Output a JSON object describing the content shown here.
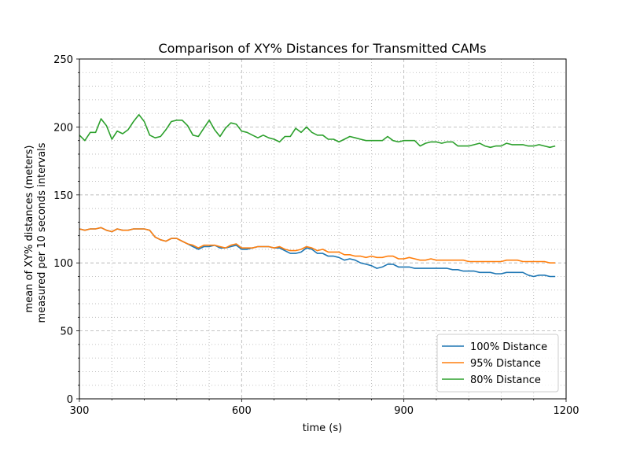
{
  "chart_data": {
    "type": "line",
    "title": "Comparison of XY% Distances for Transmitted CAMs",
    "xlabel": "time (s)",
    "ylabel": [
      "mean of XY% distances (meters)",
      "measured per 10 seconds intervals"
    ],
    "xlim": [
      300,
      1200
    ],
    "ylim": [
      0,
      250
    ],
    "x_ticks": [
      300,
      600,
      900,
      1200
    ],
    "y_ticks": [
      0,
      50,
      100,
      150,
      200,
      250
    ],
    "x_minor_step": 60,
    "y_minor_step": 10,
    "grid": {
      "major": "dashed",
      "minor": "dotted"
    },
    "legend_position": "lower-right",
    "x": [
      300,
      310,
      320,
      330,
      340,
      350,
      360,
      370,
      380,
      390,
      400,
      410,
      420,
      430,
      440,
      450,
      460,
      470,
      480,
      490,
      500,
      510,
      520,
      530,
      540,
      550,
      560,
      570,
      580,
      590,
      600,
      610,
      620,
      630,
      640,
      650,
      660,
      670,
      680,
      690,
      700,
      710,
      720,
      730,
      740,
      750,
      760,
      770,
      780,
      790,
      800,
      810,
      820,
      830,
      840,
      850,
      860,
      870,
      880,
      890,
      900,
      910,
      920,
      930,
      940,
      950,
      960,
      970,
      980,
      990,
      1000,
      1010,
      1020,
      1030,
      1040,
      1050,
      1060,
      1070,
      1080,
      1090,
      1100,
      1110,
      1120,
      1130,
      1140,
      1150,
      1160,
      1170,
      1180
    ],
    "series": [
      {
        "name": "100% Distance",
        "color": "#1f77b4",
        "values": [
          125,
          124,
          125,
          125,
          126,
          124,
          123,
          125,
          124,
          124,
          125,
          125,
          125,
          124,
          119,
          117,
          116,
          118,
          118,
          116,
          114,
          112,
          110,
          112,
          112,
          113,
          111,
          111,
          112,
          113,
          110,
          110,
          111,
          112,
          112,
          112,
          111,
          111,
          109,
          107,
          107,
          108,
          111,
          110,
          107,
          107,
          105,
          105,
          104,
          102,
          103,
          102,
          100,
          99,
          98,
          96,
          97,
          99,
          99,
          97,
          97,
          97,
          96,
          96,
          96,
          96,
          96,
          96,
          96,
          95,
          95,
          94,
          94,
          94,
          93,
          93,
          93,
          92,
          92,
          93,
          93,
          93,
          93,
          91,
          90,
          91,
          91,
          90,
          90
        ]
      },
      {
        "name": "95% Distance",
        "color": "#ff7f0e",
        "values": [
          125,
          124,
          125,
          125,
          126,
          124,
          123,
          125,
          124,
          124,
          125,
          125,
          125,
          124,
          119,
          117,
          116,
          118,
          118,
          116,
          114,
          113,
          111,
          113,
          113,
          113,
          112,
          111,
          113,
          114,
          111,
          111,
          111,
          112,
          112,
          112,
          111,
          112,
          110,
          109,
          109,
          110,
          112,
          111,
          109,
          110,
          108,
          108,
          108,
          106,
          106,
          105,
          105,
          104,
          105,
          104,
          104,
          105,
          105,
          103,
          103,
          104,
          103,
          102,
          102,
          103,
          102,
          102,
          102,
          102,
          102,
          102,
          101,
          101,
          101,
          101,
          101,
          101,
          101,
          102,
          102,
          102,
          101,
          101,
          101,
          101,
          101,
          100,
          100
        ]
      },
      {
        "name": "80% Distance",
        "color": "#2ca02c",
        "values": [
          194,
          190,
          196,
          196,
          206,
          201,
          191,
          197,
          195,
          198,
          204,
          209,
          204,
          194,
          192,
          193,
          198,
          204,
          205,
          205,
          201,
          194,
          193,
          199,
          205,
          198,
          193,
          199,
          203,
          202,
          197,
          196,
          194,
          192,
          194,
          192,
          191,
          189,
          193,
          193,
          199,
          196,
          200,
          196,
          194,
          194,
          191,
          191,
          189,
          191,
          193,
          192,
          191,
          190,
          190,
          190,
          190,
          193,
          190,
          189,
          190,
          190,
          190,
          186,
          188,
          189,
          189,
          188,
          189,
          189,
          186,
          186,
          186,
          187,
          188,
          186,
          185,
          186,
          186,
          188,
          187,
          187,
          187,
          186,
          186,
          187,
          186,
          185,
          186
        ]
      }
    ]
  }
}
